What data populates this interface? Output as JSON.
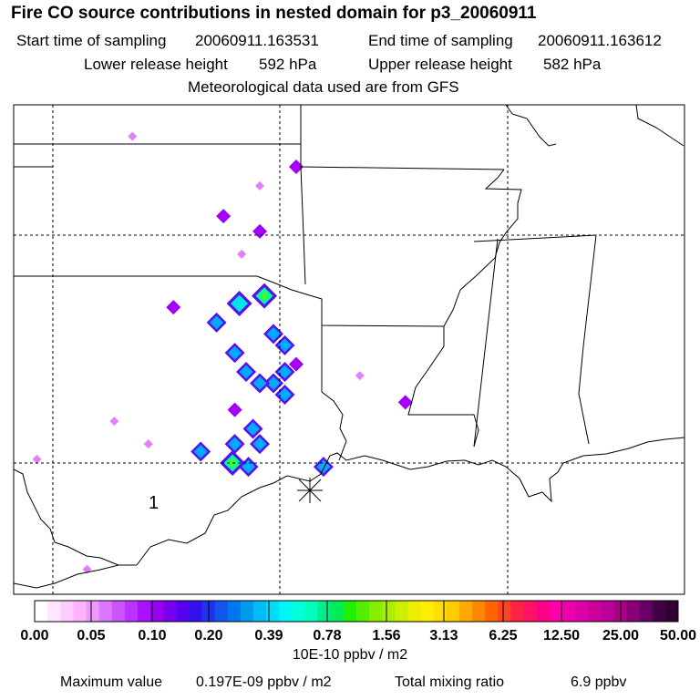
{
  "header": {
    "title": "Fire CO source contributions in nested domain for p3_20060911",
    "start_label": "Start time of sampling",
    "start_value": "20060911.163531",
    "end_label": "End time of sampling",
    "end_value": "20060911.163612",
    "lower_label": "Lower release height",
    "lower_value": "592 hPa",
    "upper_label": "Upper release height",
    "upper_value": "582 hPa",
    "met_line": "Meteorological data used are from GFS"
  },
  "map": {
    "release_label": "1",
    "cells": [
      {
        "lon": -99.0,
        "lat": 38.6,
        "level": 0.04
      },
      {
        "lon": -91.8,
        "lat": 37.8,
        "level": 0.15
      },
      {
        "lon": -93.4,
        "lat": 37.3,
        "level": 0.08
      },
      {
        "lon": -95.0,
        "lat": 36.5,
        "level": 0.1
      },
      {
        "lon": -93.4,
        "lat": 36.1,
        "level": 0.1
      },
      {
        "lon": -94.2,
        "lat": 35.5,
        "level": 0.06
      },
      {
        "lon": -97.2,
        "lat": 34.1,
        "level": 0.15
      },
      {
        "lon": -94.3,
        "lat": 34.2,
        "level": 0.5
      },
      {
        "lon": -93.2,
        "lat": 34.4,
        "level": 0.8
      },
      {
        "lon": -95.3,
        "lat": 33.7,
        "level": 0.3
      },
      {
        "lon": -92.8,
        "lat": 33.4,
        "level": 0.3
      },
      {
        "lon": -92.3,
        "lat": 33.1,
        "level": 0.25
      },
      {
        "lon": -94.5,
        "lat": 32.9,
        "level": 0.25
      },
      {
        "lon": -91.8,
        "lat": 32.6,
        "level": 0.12
      },
      {
        "lon": -94.0,
        "lat": 32.4,
        "level": 0.25
      },
      {
        "lon": -92.8,
        "lat": 32.1,
        "level": 0.3
      },
      {
        "lon": -93.4,
        "lat": 32.1,
        "level": 0.2
      },
      {
        "lon": -92.3,
        "lat": 32.4,
        "level": 0.2
      },
      {
        "lon": -92.3,
        "lat": 31.8,
        "level": 0.25
      },
      {
        "lon": -94.5,
        "lat": 31.4,
        "level": 0.15
      },
      {
        "lon": -89.0,
        "lat": 32.3,
        "level": 0.05
      },
      {
        "lon": -87.0,
        "lat": 31.6,
        "level": 0.12
      },
      {
        "lon": -93.7,
        "lat": 30.9,
        "level": 0.2
      },
      {
        "lon": -94.5,
        "lat": 30.5,
        "level": 0.3
      },
      {
        "lon": -93.4,
        "lat": 30.5,
        "level": 0.3
      },
      {
        "lon": -96.0,
        "lat": 30.3,
        "level": 0.2
      },
      {
        "lon": -94.6,
        "lat": 30.0,
        "level": 1.0
      },
      {
        "lon": -93.9,
        "lat": 29.9,
        "level": 0.35
      },
      {
        "lon": -90.6,
        "lat": 29.9,
        "level": 0.2
      },
      {
        "lon": -99.8,
        "lat": 31.1,
        "level": 0.04
      },
      {
        "lon": -98.3,
        "lat": 30.5,
        "level": 0.07
      },
      {
        "lon": -103.2,
        "lat": 30.1,
        "level": 0.08
      },
      {
        "lon": -101.0,
        "lat": 27.2,
        "level": 0.04
      },
      {
        "lon": -103.2,
        "lat": 26.1,
        "level": 0.2
      }
    ]
  },
  "colorbar": {
    "tick_labels": [
      "0.00",
      "0.05",
      "0.10",
      "0.20",
      "0.39",
      "0.78",
      "1.56",
      "3.13",
      "6.25",
      "12.50",
      "25.00",
      "50.00"
    ],
    "units": "10E-10 ppbv / m2"
  },
  "footer": {
    "max_label": "Maximum value",
    "max_value": "0.197E-09 ppbv / m2",
    "total_label": "Total mixing ratio",
    "total_value": "6.9 ppbv"
  }
}
